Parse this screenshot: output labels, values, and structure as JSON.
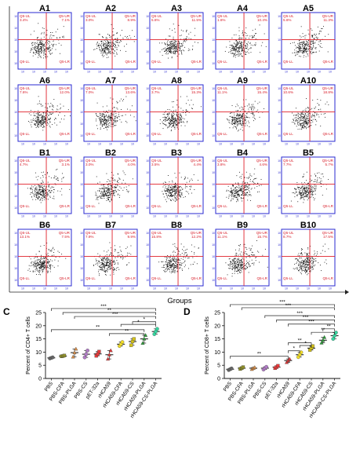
{
  "flow_panel": {
    "tick_label": "10",
    "quadrant_labels": {
      "ul": "Q5-UL",
      "ur": "Q5-UR",
      "ll": "Q5-LL",
      "lr": "Q5-LR"
    },
    "x_axis_label": "Groups",
    "plots": [
      {
        "name": "A1",
        "ul": "3.4%",
        "ur": "7.1%"
      },
      {
        "name": "A2",
        "ul": "3.0%",
        "ur": "8.9%"
      },
      {
        "name": "A3",
        "ul": "5.6%",
        "ur": "11.5%"
      },
      {
        "name": "A4",
        "ul": "1.6%",
        "ur": "10.4%"
      },
      {
        "name": "A5",
        "ul": "5.6%",
        "ur": "11.3%"
      },
      {
        "name": "A6",
        "ul": "7.6%",
        "ur": "12.0%"
      },
      {
        "name": "A7",
        "ul": "7.0%",
        "ur": "13.6%"
      },
      {
        "name": "A8",
        "ul": "3.7%",
        "ur": "15.3%"
      },
      {
        "name": "A9",
        "ul": "11.1%",
        "ur": "15.4%"
      },
      {
        "name": "A10",
        "ul": "10.6%",
        "ur": "18.8%"
      },
      {
        "name": "B1",
        "ul": "4.7%",
        "ur": "3.1%"
      },
      {
        "name": "B2",
        "ul": "3.0%",
        "ur": "4.0%"
      },
      {
        "name": "B3",
        "ul": "3.5%",
        "ur": "4.4%"
      },
      {
        "name": "B4",
        "ul": "3.8%",
        "ur": "4.6%"
      },
      {
        "name": "B5",
        "ul": "7.7%",
        "ur": "5.7%"
      },
      {
        "name": "B6",
        "ul": "13.1%",
        "ur": "7.5%"
      },
      {
        "name": "B7",
        "ul": "7.9%",
        "ur": "9.9%"
      },
      {
        "name": "B8",
        "ul": "15.8%",
        "ur": "12.2%"
      },
      {
        "name": "B9",
        "ul": "11.1%",
        "ur": "15.7%"
      },
      {
        "name": "B10",
        "ul": "8.7%",
        "ur": "17.5%"
      }
    ]
  },
  "chart_data": [
    {
      "type": "scatter",
      "panel_letter": "C",
      "ylabel": "Percent of CD4+ T cells",
      "ylim": [
        0,
        25
      ],
      "yticks": [
        0,
        5,
        10,
        15,
        20,
        25
      ],
      "categories": [
        "PBS",
        "PBS-CFA",
        "PBS-PLGA",
        "PBS-CS",
        "pET-32a",
        "rHCA59",
        "rHCA59-CFA",
        "rHCA59-CS",
        "rHCA59-PLGA",
        "rHCA59-CS-PLGA"
      ],
      "means": [
        7.8,
        8.5,
        9.8,
        9.2,
        9.3,
        9.0,
        13.0,
        14.0,
        15.0,
        17.8
      ],
      "points": [
        [
          7.6,
          7.8,
          8.0
        ],
        [
          8.4,
          8.5,
          8.7
        ],
        [
          8.2,
          9.8,
          11.2
        ],
        [
          8.0,
          9.2,
          10.6
        ],
        [
          8.6,
          9.3,
          10.2
        ],
        [
          7.4,
          9.0,
          10.6
        ],
        [
          12.3,
          13.0,
          13.8
        ],
        [
          12.6,
          14.0,
          15.0
        ],
        [
          13.4,
          15.0,
          16.4
        ],
        [
          16.8,
          17.8,
          18.8
        ]
      ],
      "colors": [
        "#666666",
        "#8f8f2a",
        "#d68e4a",
        "#b07bc4",
        "#e83a3a",
        "#d93a3a",
        "#f0dc2a",
        "#d4c21a",
        "#2e9a3a",
        "#36d6a0"
      ],
      "significance": [
        "***",
        "**",
        "***",
        "**",
        "**",
        "*",
        "*"
      ]
    },
    {
      "type": "scatter",
      "panel_letter": "D",
      "ylabel": "Percent of CD8+ T cells",
      "ylim": [
        0,
        25
      ],
      "yticks": [
        0,
        5,
        10,
        15,
        20,
        25
      ],
      "categories": [
        "PBS",
        "PBS-CFA",
        "PBS-PLGA",
        "PBS-CS",
        "pET-32a",
        "rHCA59",
        "rHCA59-CFA",
        "rHCA59-CS",
        "rHCA59-PLGA",
        "rHCA59-CS-PLGA"
      ],
      "means": [
        3.5,
        3.9,
        3.9,
        3.9,
        4.3,
        6.8,
        9.0,
        11.5,
        14.5,
        16.2
      ],
      "points": [
        [
          3.2,
          3.5,
          3.8
        ],
        [
          3.6,
          3.9,
          4.3
        ],
        [
          3.5,
          3.9,
          4.2
        ],
        [
          3.4,
          3.9,
          4.4
        ],
        [
          3.9,
          4.3,
          4.8
        ],
        [
          6.1,
          6.8,
          7.4
        ],
        [
          8.1,
          9.0,
          9.9
        ],
        [
          10.8,
          11.5,
          12.3
        ],
        [
          13.5,
          14.5,
          15.6
        ],
        [
          15.0,
          16.2,
          17.4
        ]
      ],
      "colors": [
        "#666666",
        "#8f8f2a",
        "#d68e4a",
        "#b07bc4",
        "#e83a3a",
        "#d93a3a",
        "#f0dc2a",
        "#d4c21a",
        "#2e9a3a",
        "#36d6a0"
      ],
      "significance": [
        "***",
        "***",
        "***",
        "***",
        "**",
        "***",
        "**",
        "*",
        "*",
        "**",
        "**"
      ]
    }
  ]
}
